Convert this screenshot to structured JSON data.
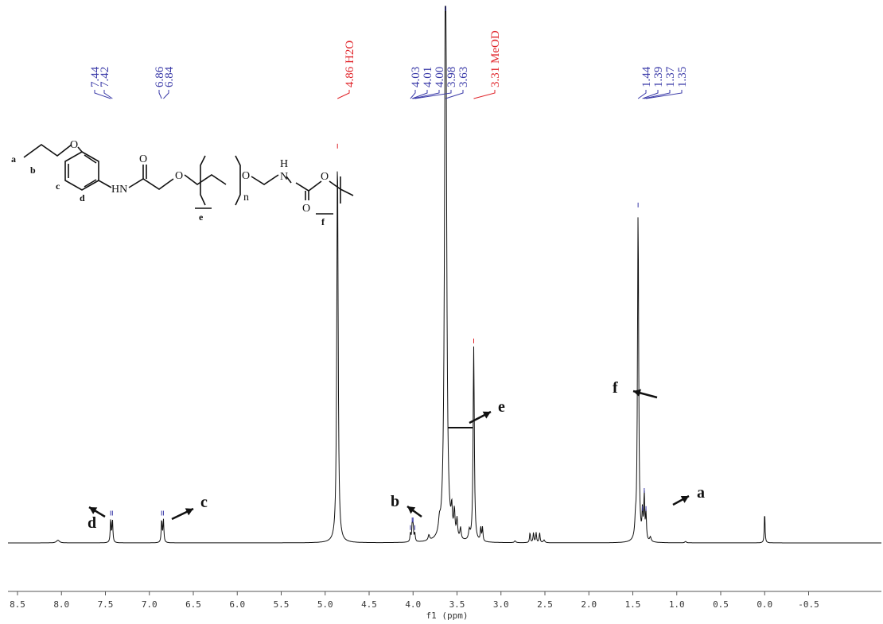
{
  "chart_data": {
    "type": "line",
    "title": "",
    "xlabel": "f1 (ppm)",
    "ylabel": "",
    "x_axis_reversed": true,
    "xlim": [
      8.6,
      -0.75
    ],
    "xticks": [
      "8.5",
      "8.0",
      "7.5",
      "7.0",
      "6.5",
      "6.0",
      "5.5",
      "5.0",
      "4.5",
      "4.0",
      "3.5",
      "3.0",
      "2.5",
      "2.0",
      "1.5",
      "1.0",
      "0.5",
      "0.0",
      "-0.5"
    ],
    "xtick_values": [
      8.5,
      8.0,
      7.5,
      7.0,
      6.5,
      6.0,
      5.5,
      5.0,
      4.5,
      4.0,
      3.5,
      3.0,
      2.5,
      2.0,
      1.5,
      1.0,
      0.5,
      0.0,
      -0.5
    ],
    "grid": false,
    "legend": "none",
    "series": [
      {
        "peaks": [
          {
            "ppm": 8.04,
            "intensity": 0.006,
            "width": 0.02
          },
          {
            "ppm": 7.44,
            "intensity": 0.05,
            "width": 0.006
          },
          {
            "ppm": 7.42,
            "intensity": 0.05,
            "width": 0.006
          },
          {
            "ppm": 6.86,
            "intensity": 0.05,
            "width": 0.006
          },
          {
            "ppm": 6.84,
            "intensity": 0.05,
            "width": 0.006
          },
          {
            "ppm": 4.86,
            "intensity": 0.86,
            "width": 0.009
          },
          {
            "ppm": 4.03,
            "intensity": 0.018,
            "width": 0.006
          },
          {
            "ppm": 4.01,
            "intensity": 0.035,
            "width": 0.006
          },
          {
            "ppm": 4.0,
            "intensity": 0.035,
            "width": 0.006
          },
          {
            "ppm": 3.98,
            "intensity": 0.018,
            "width": 0.006
          },
          {
            "ppm": 3.82,
            "intensity": 0.012,
            "width": 0.01
          },
          {
            "ppm": 3.7,
            "intensity": 0.025,
            "width": 0.012
          },
          {
            "ppm": 3.63,
            "intensity": 1.5,
            "width": 0.012
          },
          {
            "ppm": 3.56,
            "intensity": 0.05,
            "width": 0.008
          },
          {
            "ppm": 3.53,
            "intensity": 0.055,
            "width": 0.008
          },
          {
            "ppm": 3.5,
            "intensity": 0.04,
            "width": 0.008
          },
          {
            "ppm": 3.46,
            "intensity": 0.025,
            "width": 0.008
          },
          {
            "ppm": 3.36,
            "intensity": 0.02,
            "width": 0.01
          },
          {
            "ppm": 3.31,
            "intensity": 0.43,
            "width": 0.008
          },
          {
            "ppm": 3.23,
            "intensity": 0.03,
            "width": 0.006
          },
          {
            "ppm": 3.21,
            "intensity": 0.03,
            "width": 0.006
          },
          {
            "ppm": 2.84,
            "intensity": 0.004,
            "width": 0.01
          },
          {
            "ppm": 2.67,
            "intensity": 0.022,
            "width": 0.006
          },
          {
            "ppm": 2.63,
            "intensity": 0.022,
            "width": 0.006
          },
          {
            "ppm": 2.6,
            "intensity": 0.022,
            "width": 0.006
          },
          {
            "ppm": 2.56,
            "intensity": 0.022,
            "width": 0.006
          },
          {
            "ppm": 2.51,
            "intensity": 0.006,
            "width": 0.01
          },
          {
            "ppm": 1.47,
            "intensity": 0.03,
            "width": 0.008
          },
          {
            "ppm": 1.44,
            "intensity": 0.73,
            "width": 0.008
          },
          {
            "ppm": 1.39,
            "intensity": 0.06,
            "width": 0.006
          },
          {
            "ppm": 1.37,
            "intensity": 0.1,
            "width": 0.006
          },
          {
            "ppm": 1.35,
            "intensity": 0.06,
            "width": 0.006
          },
          {
            "ppm": 1.3,
            "intensity": 0.01,
            "width": 0.01
          },
          {
            "ppm": 0.9,
            "intensity": 0.003,
            "width": 0.01
          },
          {
            "ppm": 0.0,
            "intensity": 0.07,
            "width": 0.005
          }
        ]
      }
    ],
    "peak_labels": {
      "groups": [
        {
          "labels": [
            "7.44",
            "7.42"
          ],
          "ppm": [
            7.44,
            7.42
          ],
          "color": "#3a3aa8"
        },
        {
          "labels": [
            "6.86",
            "6.84"
          ],
          "ppm": [
            6.86,
            6.84
          ],
          "color": "#3a3aa8"
        },
        {
          "labels": [
            "4.86 H2O"
          ],
          "ppm": [
            4.86
          ],
          "color": "#e0242a"
        },
        {
          "labels": [
            "4.03",
            "4.01",
            "4.00",
            "3.98",
            "3.63"
          ],
          "ppm": [
            4.03,
            4.01,
            4.0,
            3.98,
            3.63
          ],
          "color": "#3a3aa8"
        },
        {
          "labels": [
            "3.31 MeOD"
          ],
          "ppm": [
            3.31
          ],
          "color": "#e0242a"
        },
        {
          "labels": [
            "1.44",
            "1.39",
            "1.37",
            "1.35"
          ],
          "ppm": [
            1.44,
            1.39,
            1.37,
            1.35
          ],
          "color": "#3a3aa8"
        }
      ]
    },
    "assignments": [
      {
        "letter": "d",
        "ppm": 7.43
      },
      {
        "letter": "c",
        "ppm": 6.85
      },
      {
        "letter": "b",
        "ppm": 4.0
      },
      {
        "letter": "e",
        "ppm": 3.63
      },
      {
        "letter": "f",
        "ppm": 1.44
      },
      {
        "letter": "a",
        "ppm": 1.37
      }
    ],
    "structure_labels": {
      "a": "a",
      "b": "b",
      "c": "c",
      "d": "d",
      "e": "e",
      "f": "f",
      "O": "O",
      "HN": "HN",
      "H": "H",
      "N": "N",
      "n": "n"
    },
    "colors": {
      "spectrum": "#111111",
      "label_blue": "#3a3aa8",
      "label_red": "#e0242a"
    }
  }
}
